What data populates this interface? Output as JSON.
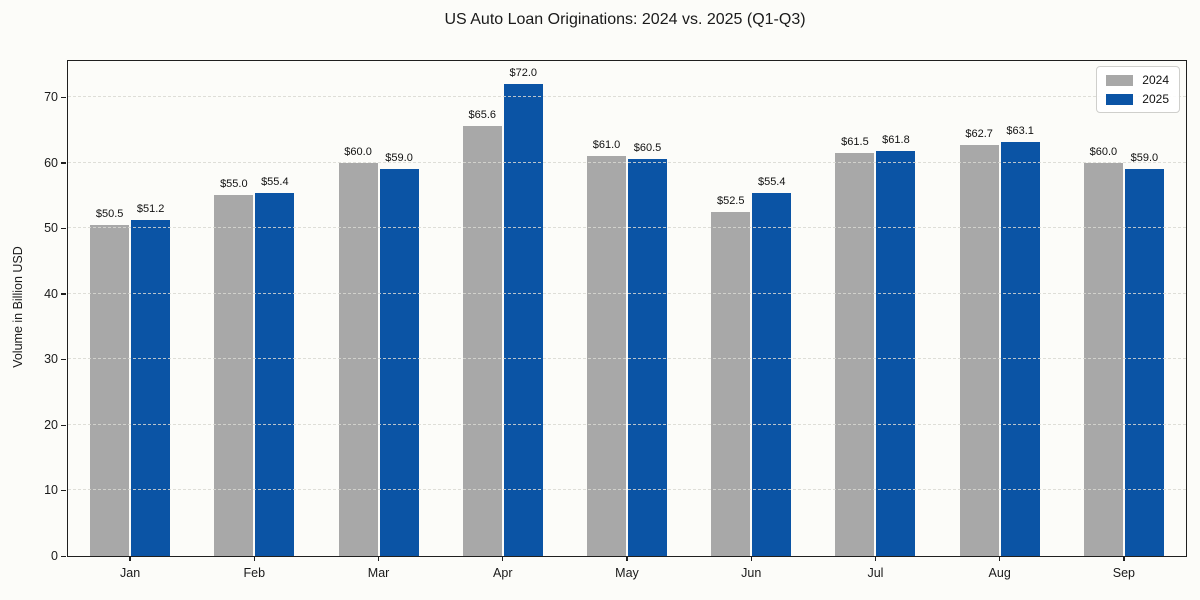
{
  "figure": {
    "background": "#fcfcf9"
  },
  "chart_data": {
    "type": "bar",
    "title": "US Auto Loan Originations: 2024 vs. 2025 (Q1-Q3)",
    "ylabel": "Volume in Billion USD",
    "xlabel": "",
    "categories": [
      "Jan",
      "Feb",
      "Mar",
      "Apr",
      "May",
      "Jun",
      "Jul",
      "Aug",
      "Sep"
    ],
    "series": [
      {
        "name": "2024",
        "color": "#a8a8a8",
        "values": [
          50.5,
          55.0,
          60.0,
          65.6,
          61.0,
          52.5,
          61.5,
          62.7,
          60.0
        ]
      },
      {
        "name": "2025",
        "color": "#0b54a5",
        "values": [
          51.2,
          55.4,
          59.0,
          72.0,
          60.5,
          55.4,
          61.8,
          63.1,
          59.0
        ]
      }
    ],
    "value_label_prefix": "$",
    "value_label_decimals": 1,
    "ylim": [
      0,
      75.5
    ],
    "yticks": [
      0,
      10,
      20,
      30,
      40,
      50,
      60,
      70
    ],
    "grid": {
      "axis": "y",
      "style": "dashed"
    },
    "legend_position": "upper-right",
    "legend_entries": [
      "2024",
      "2025"
    ]
  }
}
